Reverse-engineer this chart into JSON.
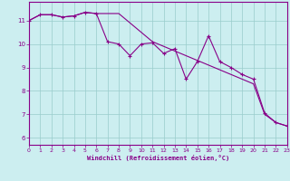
{
  "xlabel": "Windchill (Refroidissement éolien,°C)",
  "bg_color": "#cceef0",
  "line_color": "#880088",
  "grid_color": "#99cccc",
  "x_values": [
    0,
    1,
    2,
    3,
    4,
    5,
    6,
    7,
    8,
    9,
    10,
    11,
    12,
    13,
    14,
    15,
    16,
    17,
    18,
    19,
    20,
    21,
    22,
    23
  ],
  "line1_y": [
    11.0,
    11.25,
    11.25,
    11.15,
    11.2,
    11.35,
    11.3,
    10.1,
    10.0,
    9.5,
    10.0,
    10.05,
    9.6,
    9.8,
    8.5,
    9.25,
    10.35,
    9.25,
    9.0,
    8.7,
    8.5,
    7.05,
    6.65,
    6.5
  ],
  "line2_y": [
    11.0,
    11.25,
    11.25,
    11.15,
    11.2,
    11.35,
    11.3,
    11.3,
    11.3,
    10.9,
    10.5,
    10.1,
    9.9,
    9.7,
    9.5,
    9.3,
    9.1,
    8.9,
    8.7,
    8.5,
    8.3,
    7.0,
    6.65,
    6.5
  ],
  "ylim": [
    5.7,
    11.8
  ],
  "xlim": [
    0,
    23
  ],
  "yticks": [
    6,
    7,
    8,
    9,
    10,
    11
  ],
  "xticks": [
    0,
    1,
    2,
    3,
    4,
    5,
    6,
    7,
    8,
    9,
    10,
    11,
    12,
    13,
    14,
    15,
    16,
    17,
    18,
    19,
    20,
    21,
    22,
    23
  ]
}
